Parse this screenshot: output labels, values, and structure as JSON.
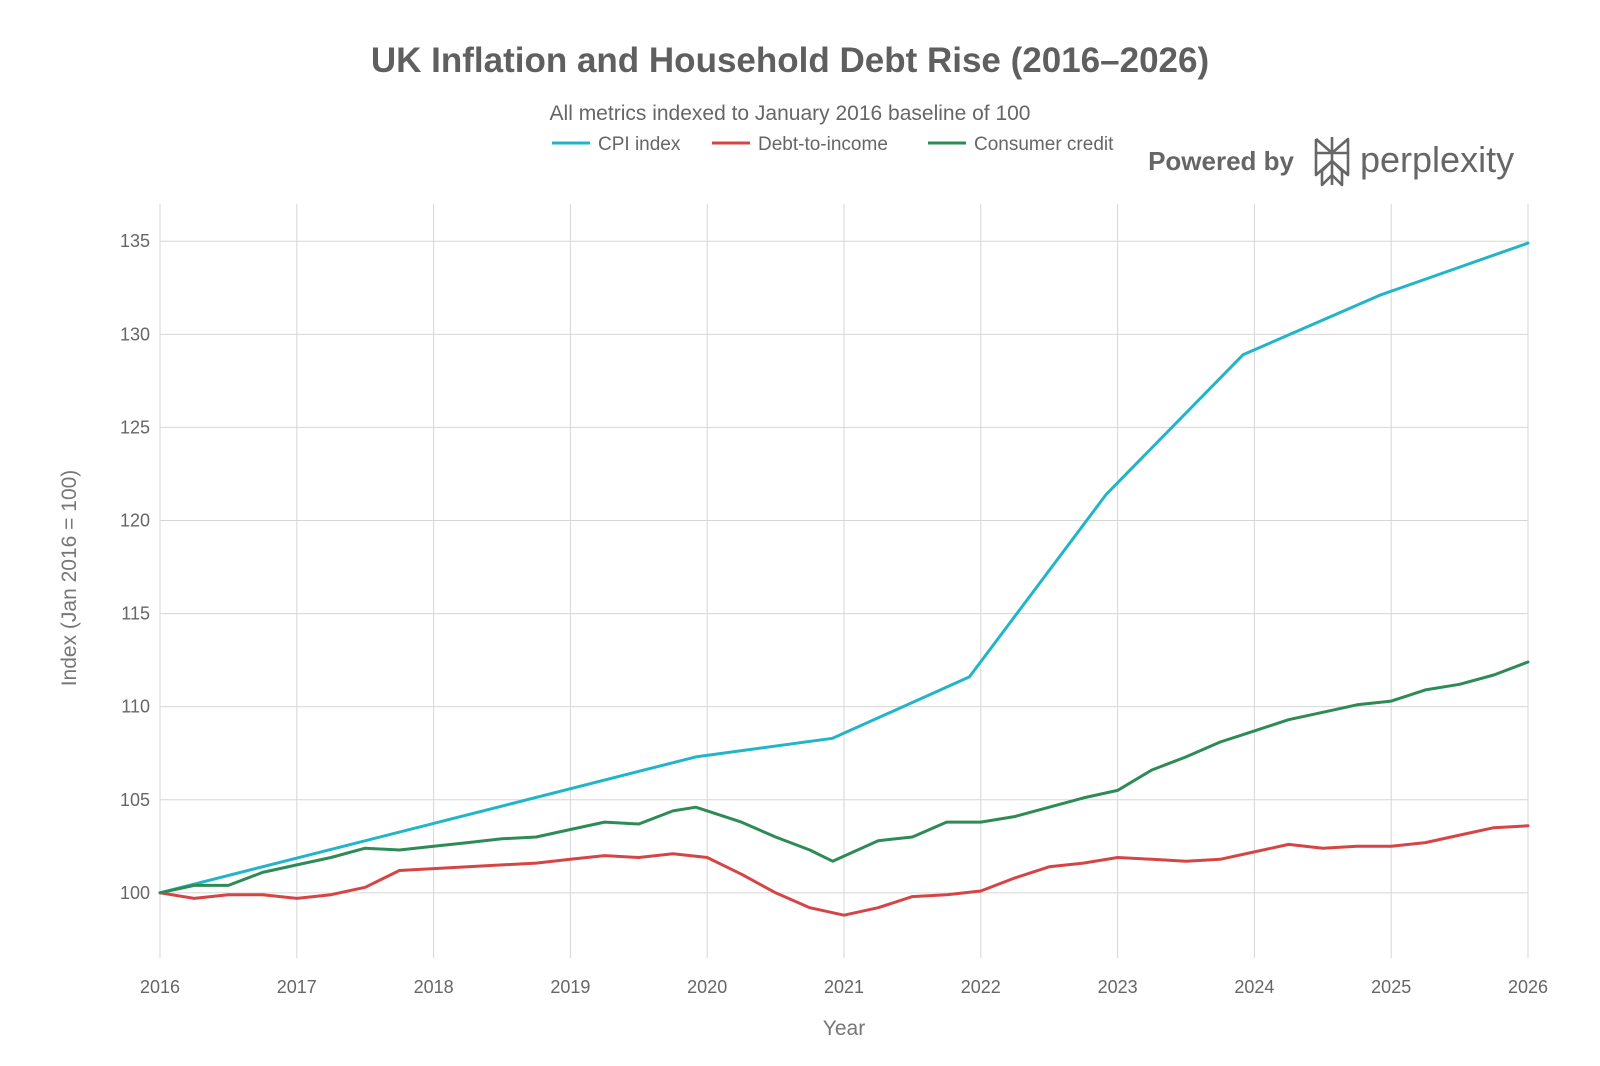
{
  "branding": {
    "powered_by": "Powered by",
    "name": "perplexity"
  },
  "colors": {
    "cpi": "#22b5c9",
    "debt": "#d64545",
    "credit": "#2e8b57",
    "grid": "#d6d6d6"
  },
  "chart_data": {
    "type": "line",
    "title": "UK Inflation and Household Debt Rise (2016–2026)",
    "subtitle": "All metrics indexed to January 2016 baseline of 100",
    "xlabel": "Year",
    "ylabel": "Index (Jan 2016 = 100)",
    "xlim": [
      2016,
      2026
    ],
    "ylim": [
      96.5,
      137
    ],
    "xticks": [
      2016,
      2017,
      2018,
      2019,
      2020,
      2021,
      2022,
      2023,
      2024,
      2025,
      2026
    ],
    "xtick_labels": [
      "2016",
      "2017",
      "2018",
      "2019",
      "2020",
      "2021",
      "2022",
      "2023",
      "2024",
      "2025",
      "2026"
    ],
    "yticks": [
      100,
      105,
      110,
      115,
      120,
      125,
      130,
      135
    ],
    "ytick_labels": [
      "100",
      "105",
      "110",
      "115",
      "120",
      "125",
      "130",
      "135"
    ],
    "legend_position": "top-center",
    "series": [
      {
        "name": "CPI index",
        "color": "#22b5c9",
        "x": [
          2016,
          2019.917,
          2020.917,
          2021.917,
          2022.917,
          2023.917,
          2024.917,
          2026
        ],
        "y": [
          100.0,
          107.3,
          108.3,
          111.6,
          121.4,
          128.9,
          132.1,
          134.9
        ]
      },
      {
        "name": "Debt-to-income",
        "color": "#d64545",
        "x": [
          2016,
          2016.25,
          2016.5,
          2016.75,
          2017,
          2017.25,
          2017.5,
          2017.75,
          2018,
          2018.25,
          2018.5,
          2018.75,
          2019,
          2019.25,
          2019.5,
          2019.75,
          2020,
          2020.25,
          2020.5,
          2020.75,
          2021,
          2021.25,
          2021.5,
          2021.75,
          2022,
          2022.25,
          2022.5,
          2022.75,
          2023,
          2023.25,
          2023.5,
          2023.75,
          2024,
          2024.25,
          2024.5,
          2024.75,
          2025,
          2025.25,
          2025.5,
          2025.75,
          2026
        ],
        "y": [
          100.0,
          99.7,
          99.9,
          99.9,
          99.7,
          99.9,
          100.3,
          101.2,
          101.3,
          101.4,
          101.5,
          101.6,
          101.8,
          102.0,
          101.9,
          102.1,
          101.9,
          101.0,
          100.0,
          99.2,
          98.8,
          99.2,
          99.8,
          99.9,
          100.1,
          100.8,
          101.4,
          101.6,
          101.9,
          101.8,
          101.7,
          101.8,
          102.2,
          102.6,
          102.4,
          102.5,
          102.5,
          102.7,
          103.1,
          103.5,
          103.6
        ]
      },
      {
        "name": "Consumer credit",
        "color": "#2e8b57",
        "x": [
          2016,
          2016.25,
          2016.5,
          2016.75,
          2017,
          2017.25,
          2017.5,
          2017.75,
          2018,
          2018.25,
          2018.5,
          2018.75,
          2019,
          2019.25,
          2019.5,
          2019.75,
          2019.917,
          2020.25,
          2020.5,
          2020.75,
          2020.917,
          2021.25,
          2021.5,
          2021.75,
          2022,
          2022.25,
          2022.5,
          2022.75,
          2023,
          2023.25,
          2023.5,
          2023.75,
          2024,
          2024.25,
          2024.5,
          2024.75,
          2025,
          2025.25,
          2025.5,
          2025.75,
          2026
        ],
        "y": [
          100.0,
          100.4,
          100.4,
          101.1,
          101.5,
          101.9,
          102.4,
          102.3,
          102.5,
          102.7,
          102.9,
          103.0,
          103.4,
          103.8,
          103.7,
          104.4,
          104.6,
          103.8,
          103.0,
          102.3,
          101.7,
          102.8,
          103.0,
          103.8,
          103.8,
          104.1,
          104.6,
          105.1,
          105.5,
          106.6,
          107.3,
          108.1,
          108.7,
          109.3,
          109.7,
          110.1,
          110.3,
          110.9,
          111.2,
          111.7,
          112.4
        ]
      }
    ]
  }
}
